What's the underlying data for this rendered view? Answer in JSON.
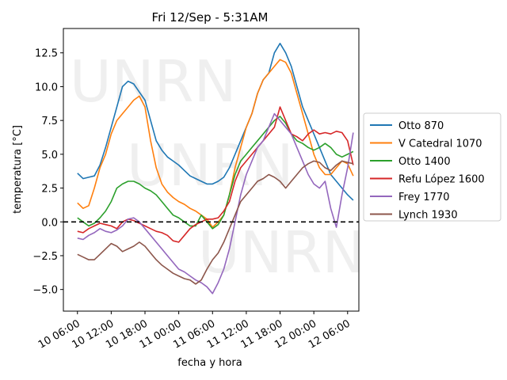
{
  "chart_data": {
    "type": "line",
    "title": "Fri 12/Sep - 5:31AM",
    "xlabel": "fecha y hora",
    "ylabel": "temperatura [°C]",
    "watermark": "UNRN",
    "x_unit": "hours since 10 Sep 00:00",
    "xlim": [
      3.5,
      56
    ],
    "ylim": [
      -6.6,
      14.3
    ],
    "x_ticks": [
      {
        "value": 6,
        "label": "10 06:00"
      },
      {
        "value": 12,
        "label": "10 12:00"
      },
      {
        "value": 18,
        "label": "10 18:00"
      },
      {
        "value": 24,
        "label": "11 00:00"
      },
      {
        "value": 30,
        "label": "11 06:00"
      },
      {
        "value": 36,
        "label": "11 12:00"
      },
      {
        "value": 42,
        "label": "11 18:00"
      },
      {
        "value": 48,
        "label": "12 00:00"
      },
      {
        "value": 54,
        "label": "12 06:00"
      }
    ],
    "y_ticks": [
      {
        "value": -5.0,
        "label": "−5.0"
      },
      {
        "value": -2.5,
        "label": "−2.5"
      },
      {
        "value": 0.0,
        "label": "0.0"
      },
      {
        "value": 2.5,
        "label": "2.5"
      },
      {
        "value": 5.0,
        "label": "5.0"
      },
      {
        "value": 7.5,
        "label": "7.5"
      },
      {
        "value": 10.0,
        "label": "10.0"
      },
      {
        "value": 12.5,
        "label": "12.5"
      }
    ],
    "reference_line": {
      "y": 0,
      "style": "dashed",
      "color": "#000000"
    },
    "legend_position": "right",
    "series": [
      {
        "name": "Otto 870",
        "color": "#1f77b4",
        "points": [
          [
            6,
            3.6
          ],
          [
            7,
            3.2
          ],
          [
            8,
            3.3
          ],
          [
            9,
            3.4
          ],
          [
            10,
            4.2
          ],
          [
            11,
            5.5
          ],
          [
            12,
            7.0
          ],
          [
            13,
            8.5
          ],
          [
            14,
            10.0
          ],
          [
            15,
            10.4
          ],
          [
            16,
            10.2
          ],
          [
            17,
            9.6
          ],
          [
            18,
            9.0
          ],
          [
            19,
            7.5
          ],
          [
            20,
            6.0
          ],
          [
            21,
            5.3
          ],
          [
            22,
            4.8
          ],
          [
            23,
            4.5
          ],
          [
            24,
            4.2
          ],
          [
            25,
            3.8
          ],
          [
            26,
            3.4
          ],
          [
            27,
            3.2
          ],
          [
            28,
            3.0
          ],
          [
            29,
            2.8
          ],
          [
            30,
            2.8
          ],
          [
            31,
            3.0
          ],
          [
            32,
            3.3
          ],
          [
            33,
            4.0
          ],
          [
            34,
            5.0
          ],
          [
            35,
            6.0
          ],
          [
            36,
            7.0
          ],
          [
            37,
            8.0
          ],
          [
            38,
            9.5
          ],
          [
            39,
            10.5
          ],
          [
            40,
            11.0
          ],
          [
            41,
            12.5
          ],
          [
            42,
            13.2
          ],
          [
            43,
            12.5
          ],
          [
            44,
            11.5
          ],
          [
            45,
            10.0
          ],
          [
            46,
            8.5
          ],
          [
            47,
            7.5
          ],
          [
            48,
            6.5
          ],
          [
            49,
            5.5
          ],
          [
            50,
            4.5
          ],
          [
            51,
            3.5
          ],
          [
            52,
            3.0
          ],
          [
            53,
            2.5
          ],
          [
            54,
            2.0
          ],
          [
            55,
            1.6
          ]
        ]
      },
      {
        "name": "V Catedral 1070",
        "color": "#ff7f0e",
        "points": [
          [
            6,
            1.4
          ],
          [
            7,
            1.0
          ],
          [
            8,
            1.2
          ],
          [
            9,
            2.5
          ],
          [
            10,
            4.0
          ],
          [
            11,
            5.0
          ],
          [
            12,
            6.5
          ],
          [
            13,
            7.5
          ],
          [
            14,
            8.0
          ],
          [
            15,
            8.5
          ],
          [
            16,
            9.0
          ],
          [
            17,
            9.3
          ],
          [
            18,
            8.5
          ],
          [
            19,
            6.0
          ],
          [
            20,
            4.0
          ],
          [
            21,
            2.8
          ],
          [
            22,
            2.2
          ],
          [
            23,
            1.8
          ],
          [
            24,
            1.5
          ],
          [
            25,
            1.3
          ],
          [
            26,
            1.0
          ],
          [
            27,
            0.8
          ],
          [
            28,
            0.5
          ],
          [
            29,
            0.2
          ],
          [
            30,
            -0.4
          ],
          [
            31,
            0.0
          ],
          [
            32,
            0.5
          ],
          [
            33,
            2.0
          ],
          [
            34,
            4.0
          ],
          [
            35,
            5.5
          ],
          [
            36,
            7.0
          ],
          [
            37,
            8.0
          ],
          [
            38,
            9.5
          ],
          [
            39,
            10.5
          ],
          [
            40,
            11.0
          ],
          [
            41,
            11.5
          ],
          [
            42,
            12.0
          ],
          [
            43,
            11.8
          ],
          [
            44,
            11.0
          ],
          [
            45,
            9.5
          ],
          [
            46,
            8.0
          ],
          [
            47,
            6.5
          ],
          [
            48,
            5.0
          ],
          [
            49,
            4.0
          ],
          [
            50,
            3.5
          ],
          [
            51,
            3.5
          ],
          [
            52,
            4.0
          ],
          [
            53,
            4.5
          ],
          [
            54,
            4.3
          ],
          [
            55,
            3.4
          ]
        ]
      },
      {
        "name": "Otto 1400",
        "color": "#2ca02c",
        "points": [
          [
            6,
            0.3
          ],
          [
            7,
            0.0
          ],
          [
            8,
            -0.3
          ],
          [
            9,
            -0.1
          ],
          [
            10,
            0.3
          ],
          [
            11,
            0.8
          ],
          [
            12,
            1.5
          ],
          [
            13,
            2.5
          ],
          [
            14,
            2.8
          ],
          [
            15,
            3.0
          ],
          [
            16,
            3.0
          ],
          [
            17,
            2.8
          ],
          [
            18,
            2.5
          ],
          [
            19,
            2.3
          ],
          [
            20,
            2.0
          ],
          [
            21,
            1.5
          ],
          [
            22,
            1.0
          ],
          [
            23,
            0.5
          ],
          [
            24,
            0.3
          ],
          [
            25,
            0.0
          ],
          [
            26,
            -0.3
          ],
          [
            27,
            -0.3
          ],
          [
            28,
            0.5
          ],
          [
            29,
            0.0
          ],
          [
            30,
            -0.5
          ],
          [
            31,
            -0.2
          ],
          [
            32,
            0.5
          ],
          [
            33,
            2.0
          ],
          [
            34,
            3.5
          ],
          [
            35,
            4.5
          ],
          [
            36,
            5.0
          ],
          [
            37,
            5.5
          ],
          [
            38,
            6.0
          ],
          [
            39,
            6.5
          ],
          [
            40,
            7.0
          ],
          [
            41,
            7.5
          ],
          [
            42,
            7.8
          ],
          [
            43,
            7.3
          ],
          [
            44,
            6.5
          ],
          [
            45,
            6.0
          ],
          [
            46,
            5.8
          ],
          [
            47,
            5.5
          ],
          [
            48,
            5.3
          ],
          [
            49,
            5.5
          ],
          [
            50,
            5.8
          ],
          [
            51,
            5.5
          ],
          [
            52,
            5.0
          ],
          [
            53,
            4.8
          ],
          [
            54,
            5.0
          ],
          [
            55,
            5.2
          ]
        ]
      },
      {
        "name": "Refu López 1600",
        "color": "#d62728",
        "points": [
          [
            6,
            -0.7
          ],
          [
            7,
            -0.8
          ],
          [
            8,
            -0.5
          ],
          [
            9,
            -0.3
          ],
          [
            10,
            -0.1
          ],
          [
            11,
            -0.2
          ],
          [
            12,
            -0.3
          ],
          [
            13,
            -0.5
          ],
          [
            14,
            0.0
          ],
          [
            15,
            0.2
          ],
          [
            16,
            0.1
          ],
          [
            17,
            -0.1
          ],
          [
            18,
            -0.3
          ],
          [
            19,
            -0.5
          ],
          [
            20,
            -0.7
          ],
          [
            21,
            -0.8
          ],
          [
            22,
            -1.0
          ],
          [
            23,
            -1.4
          ],
          [
            24,
            -1.5
          ],
          [
            25,
            -1.0
          ],
          [
            26,
            -0.5
          ],
          [
            27,
            -0.2
          ],
          [
            28,
            0.0
          ],
          [
            29,
            0.2
          ],
          [
            30,
            0.2
          ],
          [
            31,
            0.3
          ],
          [
            32,
            0.8
          ],
          [
            33,
            1.5
          ],
          [
            34,
            3.0
          ],
          [
            35,
            4.0
          ],
          [
            36,
            4.5
          ],
          [
            37,
            5.0
          ],
          [
            38,
            5.5
          ],
          [
            39,
            6.0
          ],
          [
            40,
            6.5
          ],
          [
            41,
            7.0
          ],
          [
            42,
            8.5
          ],
          [
            43,
            7.5
          ],
          [
            44,
            6.5
          ],
          [
            45,
            6.3
          ],
          [
            46,
            6.0
          ],
          [
            47,
            6.5
          ],
          [
            48,
            6.8
          ],
          [
            49,
            6.5
          ],
          [
            50,
            6.6
          ],
          [
            51,
            6.5
          ],
          [
            52,
            6.7
          ],
          [
            53,
            6.6
          ],
          [
            54,
            6.0
          ],
          [
            55,
            4.2
          ]
        ]
      },
      {
        "name": "Frey 1770",
        "color": "#9467bd",
        "points": [
          [
            6,
            -1.2
          ],
          [
            7,
            -1.3
          ],
          [
            8,
            -1.0
          ],
          [
            9,
            -0.8
          ],
          [
            10,
            -0.5
          ],
          [
            11,
            -0.7
          ],
          [
            12,
            -0.8
          ],
          [
            13,
            -0.6
          ],
          [
            14,
            -0.3
          ],
          [
            15,
            0.2
          ],
          [
            16,
            0.3
          ],
          [
            17,
            0.0
          ],
          [
            18,
            -0.5
          ],
          [
            19,
            -1.0
          ],
          [
            20,
            -1.5
          ],
          [
            21,
            -2.0
          ],
          [
            22,
            -2.5
          ],
          [
            23,
            -3.0
          ],
          [
            24,
            -3.5
          ],
          [
            25,
            -3.7
          ],
          [
            26,
            -4.0
          ],
          [
            27,
            -4.3
          ],
          [
            28,
            -4.5
          ],
          [
            29,
            -4.8
          ],
          [
            30,
            -5.3
          ],
          [
            31,
            -4.5
          ],
          [
            32,
            -3.5
          ],
          [
            33,
            -2.0
          ],
          [
            34,
            0.0
          ],
          [
            35,
            2.0
          ],
          [
            36,
            3.5
          ],
          [
            37,
            4.5
          ],
          [
            38,
            5.5
          ],
          [
            39,
            6.0
          ],
          [
            40,
            7.0
          ],
          [
            41,
            8.0
          ],
          [
            42,
            7.5
          ],
          [
            43,
            7.0
          ],
          [
            44,
            6.5
          ],
          [
            45,
            5.5
          ],
          [
            46,
            4.5
          ],
          [
            47,
            3.5
          ],
          [
            48,
            2.8
          ],
          [
            49,
            2.5
          ],
          [
            50,
            3.0
          ],
          [
            51,
            1.0
          ],
          [
            52,
            -0.4
          ],
          [
            53,
            2.0
          ],
          [
            54,
            4.0
          ],
          [
            55,
            6.6
          ]
        ]
      },
      {
        "name": "Lynch 1930",
        "color": "#8c564b",
        "points": [
          [
            6,
            -2.4
          ],
          [
            7,
            -2.6
          ],
          [
            8,
            -2.8
          ],
          [
            9,
            -2.8
          ],
          [
            10,
            -2.4
          ],
          [
            11,
            -2.0
          ],
          [
            12,
            -1.6
          ],
          [
            13,
            -1.8
          ],
          [
            14,
            -2.2
          ],
          [
            15,
            -2.0
          ],
          [
            16,
            -1.8
          ],
          [
            17,
            -1.5
          ],
          [
            18,
            -1.8
          ],
          [
            19,
            -2.3
          ],
          [
            20,
            -2.8
          ],
          [
            21,
            -3.2
          ],
          [
            22,
            -3.5
          ],
          [
            23,
            -3.8
          ],
          [
            24,
            -4.0
          ],
          [
            25,
            -4.2
          ],
          [
            26,
            -4.3
          ],
          [
            27,
            -4.6
          ],
          [
            28,
            -4.3
          ],
          [
            29,
            -3.5
          ],
          [
            30,
            -2.8
          ],
          [
            31,
            -2.3
          ],
          [
            32,
            -1.5
          ],
          [
            33,
            -0.5
          ],
          [
            34,
            0.5
          ],
          [
            35,
            1.5
          ],
          [
            36,
            2.0
          ],
          [
            37,
            2.5
          ],
          [
            38,
            3.0
          ],
          [
            39,
            3.2
          ],
          [
            40,
            3.5
          ],
          [
            41,
            3.3
          ],
          [
            42,
            3.0
          ],
          [
            43,
            2.5
          ],
          [
            44,
            3.0
          ],
          [
            45,
            3.5
          ],
          [
            46,
            4.0
          ],
          [
            47,
            4.3
          ],
          [
            48,
            4.5
          ],
          [
            49,
            4.4
          ],
          [
            50,
            4.0
          ],
          [
            51,
            3.8
          ],
          [
            52,
            4.2
          ],
          [
            53,
            4.5
          ],
          [
            54,
            4.4
          ],
          [
            55,
            4.3
          ]
        ]
      }
    ]
  }
}
